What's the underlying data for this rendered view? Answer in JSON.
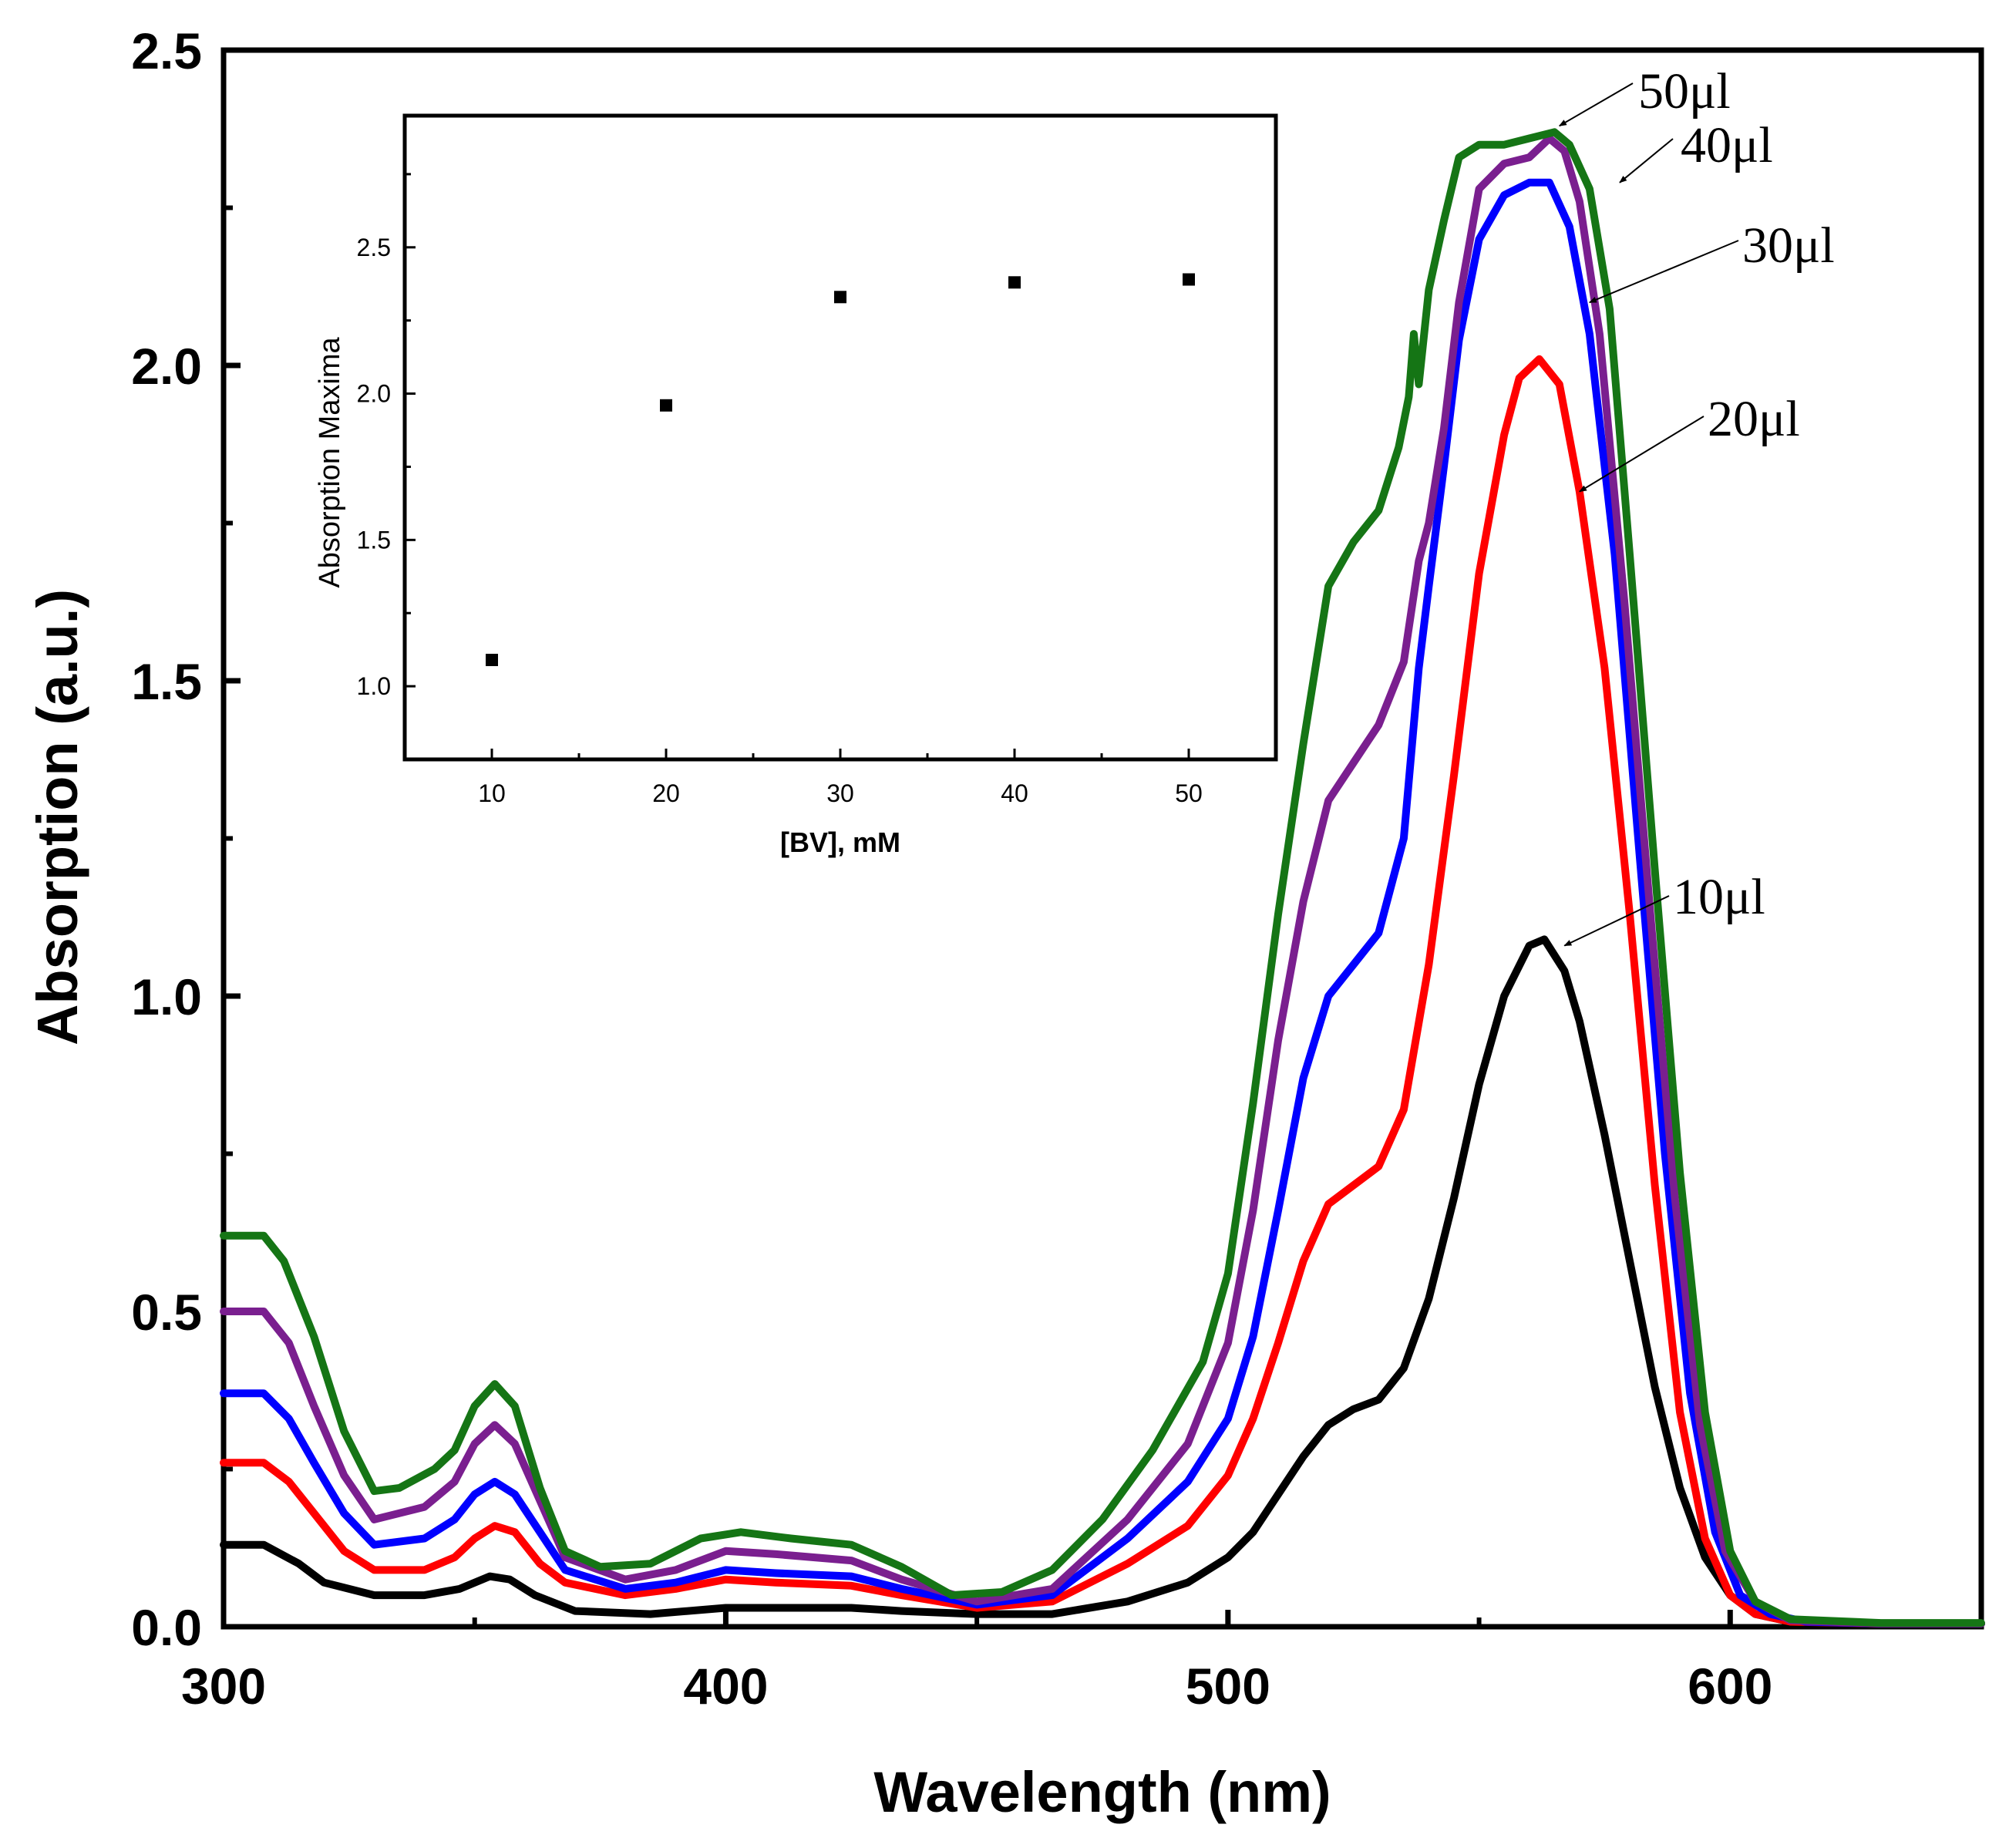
{
  "chart_data": [
    {
      "type": "line",
      "title": "",
      "xlabel": "Wavelength (nm)",
      "ylabel": "Absorption (a.u.)",
      "xlim": [
        300,
        650
      ],
      "ylim": [
        0.0,
        2.5
      ],
      "xticks": [
        "300",
        "400",
        "500",
        "600"
      ],
      "yticks": [
        "0.0",
        "0.5",
        "1.0",
        "1.5",
        "2.0",
        "2.5"
      ],
      "grid": false,
      "series": [
        {
          "name": "10µl",
          "label": "10μl",
          "color": "#000000",
          "points": [
            [
              300,
              0.13
            ],
            [
              308,
              0.13
            ],
            [
              315,
              0.1
            ],
            [
              320,
              0.07
            ],
            [
              330,
              0.05
            ],
            [
              340,
              0.05
            ],
            [
              347,
              0.06
            ],
            [
              353,
              0.08
            ],
            [
              357,
              0.075
            ],
            [
              362,
              0.05
            ],
            [
              370,
              0.025
            ],
            [
              385,
              0.02
            ],
            [
              400,
              0.03
            ],
            [
              415,
              0.03
            ],
            [
              425,
              0.03
            ],
            [
              435,
              0.025
            ],
            [
              450,
              0.02
            ],
            [
              465,
              0.02
            ],
            [
              480,
              0.04
            ],
            [
              492,
              0.07
            ],
            [
              500,
              0.11
            ],
            [
              505,
              0.15
            ],
            [
              510,
              0.21
            ],
            [
              515,
              0.27
            ],
            [
              520,
              0.32
            ],
            [
              525,
              0.345
            ],
            [
              530,
              0.36
            ],
            [
              535,
              0.41
            ],
            [
              540,
              0.52
            ],
            [
              545,
              0.68
            ],
            [
              550,
              0.86
            ],
            [
              555,
              1.0
            ],
            [
              560,
              1.08
            ],
            [
              563,
              1.09
            ],
            [
              567,
              1.04
            ],
            [
              570,
              0.96
            ],
            [
              575,
              0.78
            ],
            [
              580,
              0.58
            ],
            [
              585,
              0.38
            ],
            [
              590,
              0.22
            ],
            [
              595,
              0.11
            ],
            [
              600,
              0.05
            ],
            [
              605,
              0.02
            ],
            [
              612,
              0.008
            ],
            [
              630,
              0.005
            ],
            [
              650,
              0.005
            ]
          ]
        },
        {
          "name": "20µl",
          "label": "20μl",
          "color": "#ff0000",
          "points": [
            [
              300,
              0.26
            ],
            [
              308,
              0.26
            ],
            [
              313,
              0.23
            ],
            [
              318,
              0.18
            ],
            [
              324,
              0.12
            ],
            [
              330,
              0.09
            ],
            [
              340,
              0.09
            ],
            [
              346,
              0.11
            ],
            [
              350,
              0.14
            ],
            [
              354,
              0.16
            ],
            [
              358,
              0.15
            ],
            [
              363,
              0.1
            ],
            [
              368,
              0.07
            ],
            [
              380,
              0.05
            ],
            [
              390,
              0.06
            ],
            [
              400,
              0.075
            ],
            [
              410,
              0.07
            ],
            [
              425,
              0.065
            ],
            [
              435,
              0.05
            ],
            [
              450,
              0.03
            ],
            [
              465,
              0.04
            ],
            [
              480,
              0.1
            ],
            [
              492,
              0.16
            ],
            [
              500,
              0.24
            ],
            [
              505,
              0.33
            ],
            [
              510,
              0.45
            ],
            [
              515,
              0.58
            ],
            [
              520,
              0.67
            ],
            [
              525,
              0.7
            ],
            [
              530,
              0.73
            ],
            [
              535,
              0.82
            ],
            [
              540,
              1.05
            ],
            [
              545,
              1.35
            ],
            [
              550,
              1.67
            ],
            [
              555,
              1.89
            ],
            [
              558,
              1.98
            ],
            [
              562,
              2.01
            ],
            [
              566,
              1.97
            ],
            [
              570,
              1.8
            ],
            [
              575,
              1.52
            ],
            [
              580,
              1.13
            ],
            [
              585,
              0.7
            ],
            [
              590,
              0.34
            ],
            [
              595,
              0.14
            ],
            [
              600,
              0.05
            ],
            [
              605,
              0.02
            ],
            [
              612,
              0.008
            ],
            [
              630,
              0.005
            ],
            [
              650,
              0.005
            ]
          ]
        },
        {
          "name": "30µl",
          "label": "30μl",
          "color": "#0000ff",
          "points": [
            [
              300,
              0.37
            ],
            [
              308,
              0.37
            ],
            [
              313,
              0.33
            ],
            [
              318,
              0.26
            ],
            [
              324,
              0.18
            ],
            [
              330,
              0.13
            ],
            [
              340,
              0.14
            ],
            [
              346,
              0.17
            ],
            [
              350,
              0.21
            ],
            [
              354,
              0.23
            ],
            [
              358,
              0.21
            ],
            [
              363,
              0.15
            ],
            [
              368,
              0.09
            ],
            [
              380,
              0.06
            ],
            [
              390,
              0.07
            ],
            [
              400,
              0.09
            ],
            [
              410,
              0.085
            ],
            [
              425,
              0.08
            ],
            [
              435,
              0.06
            ],
            [
              450,
              0.035
            ],
            [
              465,
              0.05
            ],
            [
              480,
              0.14
            ],
            [
              492,
              0.23
            ],
            [
              500,
              0.33
            ],
            [
              505,
              0.46
            ],
            [
              510,
              0.66
            ],
            [
              515,
              0.87
            ],
            [
              520,
              1.0
            ],
            [
              525,
              1.05
            ],
            [
              530,
              1.1
            ],
            [
              535,
              1.25
            ],
            [
              538,
              1.52
            ],
            [
              540,
              1.65
            ],
            [
              543,
              1.84
            ],
            [
              546,
              2.04
            ],
            [
              550,
              2.2
            ],
            [
              555,
              2.27
            ],
            [
              560,
              2.29
            ],
            [
              564,
              2.29
            ],
            [
              568,
              2.22
            ],
            [
              572,
              2.05
            ],
            [
              577,
              1.7
            ],
            [
              582,
              1.22
            ],
            [
              587,
              0.75
            ],
            [
              592,
              0.37
            ],
            [
              597,
              0.15
            ],
            [
              602,
              0.05
            ],
            [
              608,
              0.02
            ],
            [
              615,
              0.008
            ],
            [
              630,
              0.005
            ],
            [
              650,
              0.005
            ]
          ]
        },
        {
          "name": "40µl",
          "label": "40μl",
          "color": "#7a1f8f",
          "points": [
            [
              300,
              0.5
            ],
            [
              308,
              0.5
            ],
            [
              313,
              0.45
            ],
            [
              318,
              0.35
            ],
            [
              324,
              0.24
            ],
            [
              330,
              0.17
            ],
            [
              340,
              0.19
            ],
            [
              346,
              0.23
            ],
            [
              350,
              0.29
            ],
            [
              354,
              0.32
            ],
            [
              358,
              0.29
            ],
            [
              363,
              0.2
            ],
            [
              368,
              0.11
            ],
            [
              380,
              0.075
            ],
            [
              390,
              0.09
            ],
            [
              400,
              0.12
            ],
            [
              410,
              0.115
            ],
            [
              425,
              0.105
            ],
            [
              435,
              0.075
            ],
            [
              450,
              0.04
            ],
            [
              465,
              0.06
            ],
            [
              480,
              0.17
            ],
            [
              492,
              0.29
            ],
            [
              500,
              0.45
            ],
            [
              505,
              0.66
            ],
            [
              510,
              0.93
            ],
            [
              515,
              1.15
            ],
            [
              520,
              1.31
            ],
            [
              525,
              1.37
            ],
            [
              530,
              1.43
            ],
            [
              535,
              1.53
            ],
            [
              538,
              1.69
            ],
            [
              540,
              1.75
            ],
            [
              543,
              1.9
            ],
            [
              546,
              2.1
            ],
            [
              550,
              2.28
            ],
            [
              555,
              2.32
            ],
            [
              560,
              2.33
            ],
            [
              564,
              2.36
            ],
            [
              567,
              2.34
            ],
            [
              570,
              2.26
            ],
            [
              574,
              2.05
            ],
            [
              579,
              1.62
            ],
            [
              584,
              1.14
            ],
            [
              589,
              0.68
            ],
            [
              594,
              0.32
            ],
            [
              599,
              0.12
            ],
            [
              605,
              0.04
            ],
            [
              612,
              0.01
            ],
            [
              630,
              0.005
            ],
            [
              650,
              0.005
            ]
          ]
        },
        {
          "name": "50µl",
          "label": "50μl",
          "color": "#157515",
          "points": [
            [
              300,
              0.62
            ],
            [
              305,
              0.62
            ],
            [
              308,
              0.62
            ],
            [
              312,
              0.58
            ],
            [
              318,
              0.46
            ],
            [
              324,
              0.31
            ],
            [
              330,
              0.215
            ],
            [
              335,
              0.22
            ],
            [
              342,
              0.25
            ],
            [
              346,
              0.28
            ],
            [
              350,
              0.35
            ],
            [
              354,
              0.385
            ],
            [
              358,
              0.35
            ],
            [
              363,
              0.22
            ],
            [
              368,
              0.12
            ],
            [
              375,
              0.095
            ],
            [
              385,
              0.1
            ],
            [
              395,
              0.14
            ],
            [
              403,
              0.15
            ],
            [
              413,
              0.14
            ],
            [
              425,
              0.13
            ],
            [
              435,
              0.095
            ],
            [
              445,
              0.05
            ],
            [
              455,
              0.055
            ],
            [
              465,
              0.09
            ],
            [
              475,
              0.17
            ],
            [
              485,
              0.28
            ],
            [
              495,
              0.42
            ],
            [
              500,
              0.56
            ],
            [
              505,
              0.83
            ],
            [
              510,
              1.13
            ],
            [
              515,
              1.4
            ],
            [
              520,
              1.65
            ],
            [
              525,
              1.72
            ],
            [
              530,
              1.77
            ],
            [
              534,
              1.87
            ],
            [
              536,
              1.95
            ],
            [
              537,
              2.05
            ],
            [
              538,
              1.97
            ],
            [
              540,
              2.12
            ],
            [
              543,
              2.23
            ],
            [
              546,
              2.33
            ],
            [
              550,
              2.35
            ],
            [
              555,
              2.35
            ],
            [
              560,
              2.36
            ],
            [
              565,
              2.37
            ],
            [
              568,
              2.35
            ],
            [
              572,
              2.28
            ],
            [
              576,
              2.09
            ],
            [
              580,
              1.7
            ],
            [
              585,
              1.2
            ],
            [
              590,
              0.72
            ],
            [
              595,
              0.34
            ],
            [
              600,
              0.12
            ],
            [
              605,
              0.04
            ],
            [
              612,
              0.012
            ],
            [
              630,
              0.006
            ],
            [
              650,
              0.006
            ]
          ]
        }
      ]
    },
    {
      "type": "scatter",
      "title": "",
      "xlabel": "[BV], mM",
      "ylabel": "Absorption Maxima",
      "xlim": [
        5,
        55
      ],
      "ylim": [
        0.75,
        2.95
      ],
      "xticks": [
        "10",
        "20",
        "30",
        "40",
        "50"
      ],
      "yticks": [
        "1.0",
        "1.5",
        "2.0",
        "2.5"
      ],
      "grid": false,
      "x": [
        10,
        20,
        30,
        40,
        50
      ],
      "y": [
        1.09,
        1.96,
        2.33,
        2.38,
        2.39
      ]
    }
  ]
}
